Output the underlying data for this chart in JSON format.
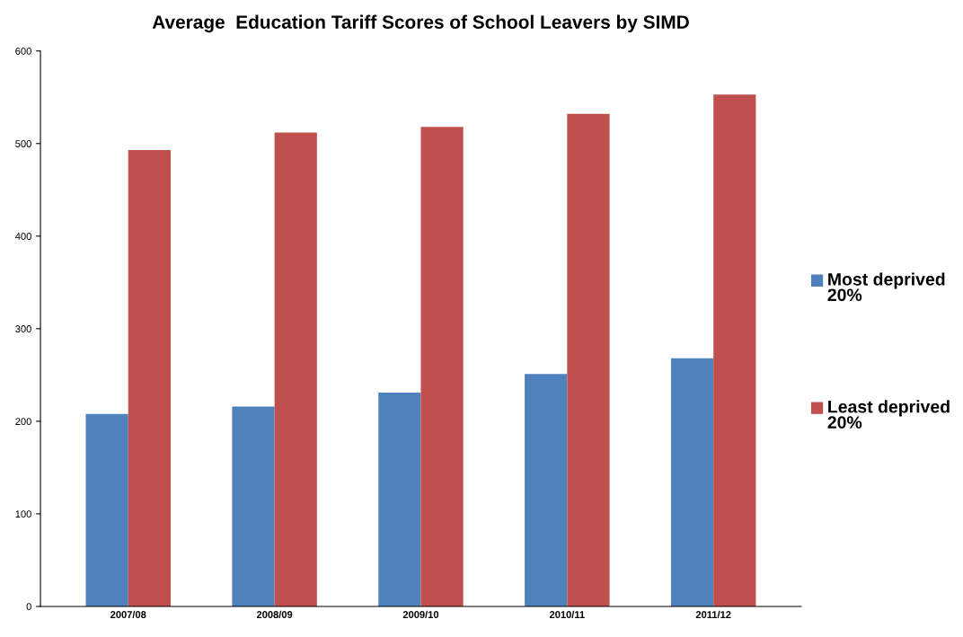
{
  "chart_data": {
    "type": "bar",
    "title": "Average  Education Tariff Scores of School Leavers by SIMD",
    "categories": [
      "2007/08",
      "2008/09",
      "2009/10",
      "2010/11",
      "2011/12"
    ],
    "series": [
      {
        "name": "Most deprived 20%",
        "color": "#4f81bd",
        "values": [
          208,
          216,
          231,
          251,
          268
        ]
      },
      {
        "name": "Least deprived 20%",
        "color": "#c0504d",
        "values": [
          493,
          512,
          518,
          532,
          553
        ]
      }
    ],
    "ylim": [
      0,
      600
    ],
    "yticks": [
      0,
      100,
      200,
      300,
      400,
      500,
      600
    ],
    "grid": false,
    "legend": "right"
  }
}
